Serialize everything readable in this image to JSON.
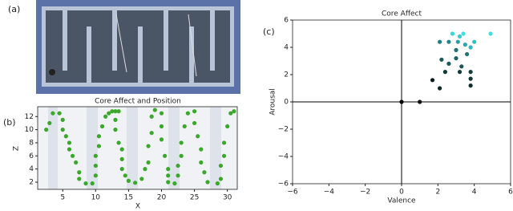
{
  "panel_labels": [
    "(a)",
    "(b)",
    "(c)"
  ],
  "chart_data": [
    {
      "type": "scatter",
      "title": "Core Affect and Position",
      "x_label": "X",
      "y_label": "Z",
      "xlim": [
        1.2,
        31.5
      ],
      "ylim": [
        0.9,
        13.5
      ],
      "xticks": [
        5,
        10,
        15,
        20,
        25,
        30
      ],
      "yticks": [
        2,
        4,
        6,
        8,
        10,
        12
      ],
      "zero_lines": false,
      "series": [
        {
          "color": "#3aa82a",
          "x": [
            2.5,
            3,
            3.5,
            4.5,
            5,
            5,
            5.5,
            6,
            6,
            6.5,
            7,
            7.5,
            7.5,
            8.5,
            9.5,
            10,
            10,
            10,
            10.5,
            10.5,
            11,
            11.5,
            12,
            12.5,
            13,
            13.5,
            13,
            13,
            13.5,
            14,
            14,
            14,
            14.5,
            15,
            16,
            17,
            17.5,
            18,
            18,
            18.5,
            18.5,
            19,
            20,
            20,
            20,
            20.5,
            21,
            21,
            21,
            22,
            22.5,
            22.5,
            23,
            23,
            23.5,
            24,
            25,
            25,
            25.5,
            26,
            26,
            26.5,
            27,
            28.5,
            29,
            29,
            29.5,
            29.5,
            30,
            30.5,
            31
          ],
          "y": [
            10,
            11,
            12.5,
            12.5,
            11.5,
            10,
            9,
            8,
            7,
            6,
            5,
            3.5,
            2.5,
            1.8,
            1.8,
            3,
            4.5,
            6,
            7.5,
            9,
            10.5,
            12,
            12.5,
            12.8,
            12.8,
            12.8,
            11.5,
            10,
            8,
            7,
            5.5,
            4,
            3,
            2.2,
            1.9,
            2.5,
            4,
            5,
            7.5,
            9.5,
            12,
            13,
            12.5,
            10.5,
            8.5,
            6,
            4,
            3,
            2,
            1.8,
            3,
            4.5,
            6,
            8,
            10.5,
            12.5,
            12.8,
            11,
            9,
            7,
            5,
            3.5,
            2,
            1.8,
            2.5,
            4.5,
            6,
            8,
            10.5,
            12.5,
            12.8
          ]
        }
      ]
    },
    {
      "type": "scatter",
      "title": "Core Affect",
      "x_label": "Valence",
      "y_label": "Arousal",
      "xlim": [
        -6,
        6
      ],
      "ylim": [
        -6,
        6
      ],
      "zero_lines": true,
      "xticks": [
        {
          "value": -6,
          "label": "−6"
        },
        {
          "value": -4,
          "label": "−4"
        },
        {
          "value": -2,
          "label": "−2"
        },
        0,
        2,
        4,
        6
      ],
      "yticks": [
        {
          "value": -6,
          "label": "−6"
        },
        {
          "value": -4,
          "label": "−4"
        },
        {
          "value": -2,
          "label": "−2"
        },
        0,
        2,
        4,
        6
      ],
      "series": [
        {
          "x": [
            0,
            1,
            1.7,
            2.1,
            2.4,
            3.2,
            3.8,
            3.8,
            3.8,
            2.2,
            3.0,
            3.3,
            2.6,
            3.0,
            3.6,
            2.1,
            2.6,
            3.1,
            3.5,
            3.8,
            4.0,
            2.8,
            3.4,
            4.9,
            3.2
          ],
          "y": [
            0,
            0,
            1.6,
            1,
            2.2,
            2.2,
            2.2,
            1.7,
            1.2,
            3.1,
            3.2,
            2.6,
            2.8,
            3.8,
            3.5,
            4.4,
            4.4,
            4.4,
            4.2,
            4.0,
            4.4,
            5.0,
            5.0,
            5.0,
            4.8
          ],
          "colors": [
            "#000000",
            "#111111",
            "#0a1a1a",
            "#102828",
            "#0f3a3a",
            "#123c3c",
            "#153d3d",
            "#133535",
            "#112e2e",
            "#1b5858",
            "#1e6262",
            "#1b5555",
            "#1c5a5a",
            "#217070",
            "#237575",
            "#1f7f7f",
            "#218787",
            "#28a0a0",
            "#2ca8a8",
            "#31b5b5",
            "#33c0c0",
            "#3ad5d5",
            "#40e0e0",
            "#40e0e0",
            "#38cccc"
          ]
        }
      ]
    }
  ]
}
